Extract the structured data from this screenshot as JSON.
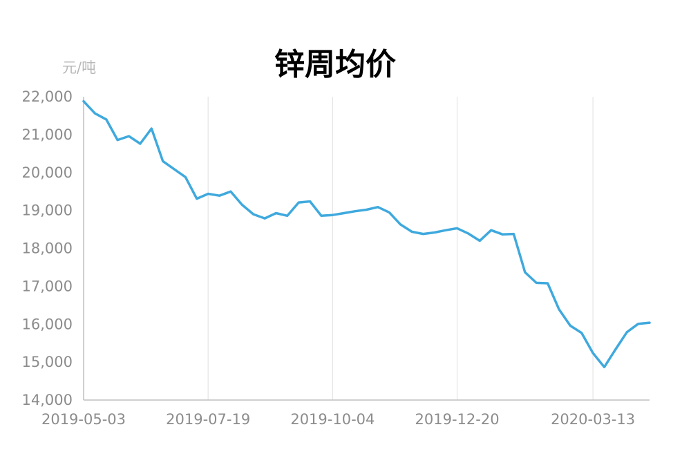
{
  "chart_data": {
    "type": "line",
    "title": "锌周均价",
    "ylabel": "元/吨",
    "xlabel": "",
    "ylim": [
      14000,
      22000
    ],
    "yticks": [
      "14,000",
      "15,000",
      "16,000",
      "17,000",
      "18,000",
      "19,000",
      "20,000",
      "21,000",
      "22,000"
    ],
    "xticks": [
      "2019-05-03",
      "2019-07-19",
      "2019-10-04",
      "2019-12-20",
      "2020-03-13"
    ],
    "grid": "vertical",
    "line_color": "#3fa9dd",
    "x": [
      "2019-05-03",
      "2019-05-10",
      "2019-05-17",
      "2019-05-24",
      "2019-05-31",
      "2019-06-07",
      "2019-06-14",
      "2019-06-21",
      "2019-06-28",
      "2019-07-05",
      "2019-07-12",
      "2019-07-19",
      "2019-07-26",
      "2019-08-02",
      "2019-08-09",
      "2019-08-16",
      "2019-08-23",
      "2019-08-30",
      "2019-09-06",
      "2019-09-13",
      "2019-09-20",
      "2019-09-27",
      "2019-10-04",
      "2019-10-11",
      "2019-10-18",
      "2019-10-25",
      "2019-11-01",
      "2019-11-08",
      "2019-11-15",
      "2019-11-22",
      "2019-11-29",
      "2019-12-06",
      "2019-12-13",
      "2019-12-20",
      "2019-12-27",
      "2020-01-03",
      "2020-01-10",
      "2020-01-17",
      "2020-01-24",
      "2020-01-31",
      "2020-02-07",
      "2020-02-14",
      "2020-02-21",
      "2020-02-28",
      "2020-03-06",
      "2020-03-13",
      "2020-03-20",
      "2020-03-27",
      "2020-04-03",
      "2020-04-10",
      "2020-04-17"
    ],
    "series": [
      {
        "values": [
          21880,
          21560,
          21400,
          20860,
          20960,
          20760,
          21160,
          20300,
          20090,
          19880,
          19310,
          19440,
          19390,
          19500,
          19150,
          18900,
          18790,
          18930,
          18860,
          19210,
          19240,
          18860,
          18880,
          18930,
          18980,
          19020,
          19090,
          18950,
          18630,
          18440,
          18380,
          18420,
          18480,
          18530,
          18390,
          18200,
          18480,
          18370,
          18380,
          17370,
          17090,
          17080,
          16390,
          15960,
          15770,
          15240,
          14870,
          15340,
          15790,
          16010,
          16040
        ]
      }
    ]
  }
}
